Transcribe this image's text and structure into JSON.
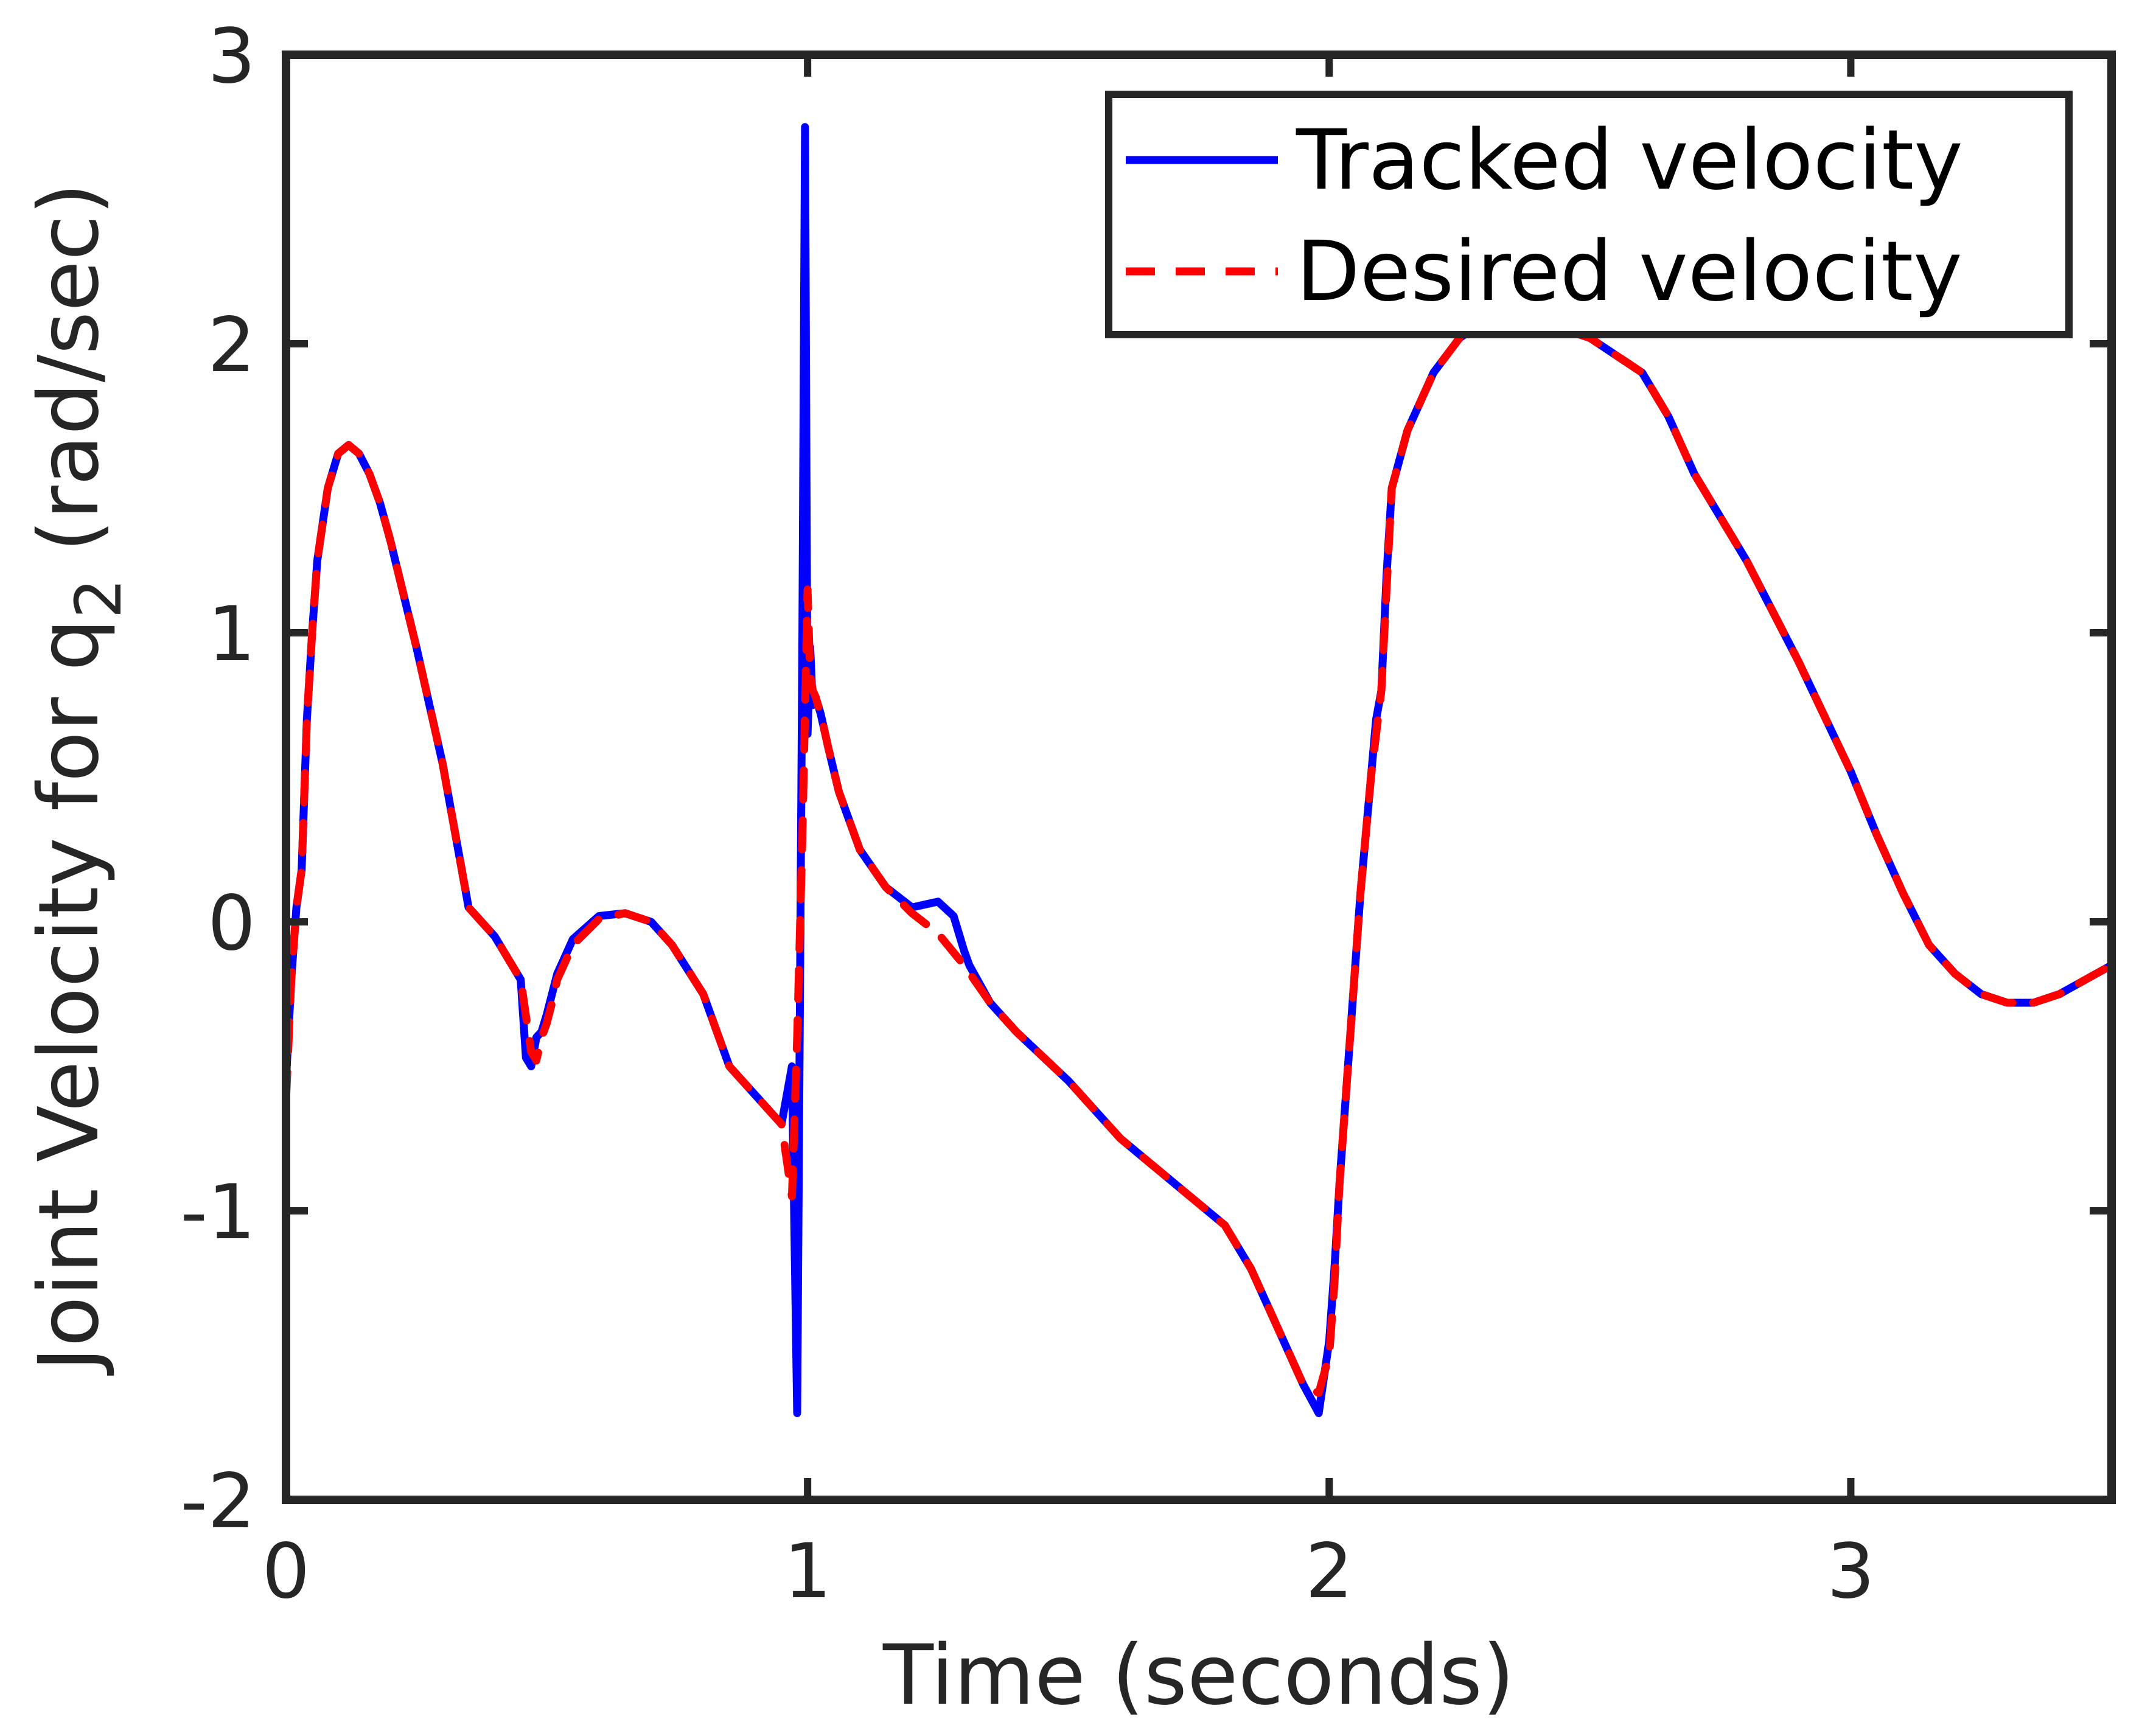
{
  "chart_data": {
    "type": "line",
    "title": "",
    "xlabel": "Time (seconds)",
    "ylabel_main": "Joint Velocity for q",
    "ylabel_sub": "2",
    "ylabel_tail": "  (rad/sec)",
    "xlim": [
      0,
      3.5
    ],
    "ylim": [
      -2,
      3
    ],
    "xticks": [
      0,
      1,
      2,
      3
    ],
    "xtick_labels": [
      "0",
      "1",
      "2",
      "3"
    ],
    "yticks": [
      -2,
      -1,
      0,
      1,
      2,
      3
    ],
    "ytick_labels": [
      "-2",
      "-1",
      "0",
      "1",
      "2",
      "3"
    ],
    "grid": false,
    "legend_position": "top-right",
    "series": [
      {
        "name": "Tracked velocity",
        "color": "#0000ff",
        "style": "solid",
        "x": [
          0,
          0.01,
          0.02,
          0.03,
          0.04,
          0.05,
          0.06,
          0.08,
          0.1,
          0.12,
          0.14,
          0.16,
          0.18,
          0.2,
          0.25,
          0.3,
          0.35,
          0.4,
          0.45,
          0.46,
          0.47,
          0.48,
          0.49,
          0.5,
          0.51,
          0.52,
          0.55,
          0.6,
          0.65,
          0.7,
          0.74,
          0.8,
          0.85,
          0.9,
          0.95,
          0.97,
          0.98,
          0.99,
          0.995,
          1.0,
          1.005,
          1.01,
          1.015,
          1.02,
          1.025,
          1.03,
          1.04,
          1.06,
          1.1,
          1.15,
          1.2,
          1.25,
          1.28,
          1.29,
          1.3,
          1.31,
          1.35,
          1.4,
          1.5,
          1.6,
          1.7,
          1.8,
          1.85,
          1.9,
          1.95,
          1.98,
          2.0,
          2.01,
          2.02,
          2.04,
          2.06,
          2.08,
          2.09,
          2.1,
          2.11,
          2.12,
          2.15,
          2.2,
          2.25,
          2.3,
          2.35,
          2.4,
          2.5,
          2.6,
          2.65,
          2.7,
          2.8,
          2.9,
          3.0,
          3.05,
          3.1,
          3.15,
          3.2,
          3.25,
          3.3,
          3.35,
          3.4,
          3.45,
          3.5
        ],
        "y": [
          -0.55,
          -0.2,
          0.05,
          0.18,
          0.7,
          1.0,
          1.25,
          1.5,
          1.62,
          1.65,
          1.62,
          1.55,
          1.45,
          1.32,
          0.95,
          0.55,
          0.05,
          -0.05,
          -0.2,
          -0.47,
          -0.5,
          -0.4,
          -0.38,
          -0.32,
          -0.25,
          -0.18,
          -0.06,
          0.02,
          0.03,
          0.0,
          -0.08,
          -0.25,
          -0.5,
          -0.6,
          -0.7,
          -0.5,
          -1.7,
          1.0,
          2.75,
          0.65,
          0.95,
          0.75,
          0.78,
          0.75,
          0.72,
          0.68,
          0.6,
          0.45,
          0.25,
          0.12,
          0.05,
          0.07,
          0.02,
          -0.04,
          -0.1,
          -0.15,
          -0.28,
          -0.38,
          -0.55,
          -0.75,
          -0.9,
          -1.05,
          -1.2,
          -1.4,
          -1.6,
          -1.7,
          -1.45,
          -1.2,
          -0.9,
          -0.4,
          0.1,
          0.5,
          0.7,
          0.8,
          1.2,
          1.5,
          1.7,
          1.9,
          2.02,
          2.08,
          2.1,
          2.08,
          2.02,
          1.9,
          1.75,
          1.55,
          1.25,
          0.9,
          0.52,
          0.3,
          0.1,
          -0.08,
          -0.18,
          -0.25,
          -0.28,
          -0.28,
          -0.25,
          -0.2,
          -0.15
        ]
      },
      {
        "name": "Desired velocity",
        "color": "#ff0000",
        "style": "dashed",
        "x": [
          0,
          0.01,
          0.02,
          0.03,
          0.04,
          0.05,
          0.06,
          0.08,
          0.1,
          0.12,
          0.14,
          0.16,
          0.18,
          0.2,
          0.25,
          0.3,
          0.35,
          0.4,
          0.45,
          0.47,
          0.48,
          0.49,
          0.5,
          0.51,
          0.52,
          0.55,
          0.6,
          0.65,
          0.7,
          0.74,
          0.8,
          0.85,
          0.9,
          0.95,
          0.97,
          0.98,
          0.99,
          1.0,
          1.005,
          1.01,
          1.015,
          1.02,
          1.03,
          1.04,
          1.06,
          1.1,
          1.15,
          1.2,
          1.25,
          1.3,
          1.35,
          1.4,
          1.5,
          1.6,
          1.7,
          1.8,
          1.85,
          1.9,
          1.95,
          1.98,
          2.0,
          2.01,
          2.02,
          2.04,
          2.06,
          2.08,
          2.1,
          2.12,
          2.15,
          2.2,
          2.25,
          2.3,
          2.35,
          2.4,
          2.5,
          2.6,
          2.65,
          2.7,
          2.8,
          2.9,
          3.0,
          3.05,
          3.1,
          3.15,
          3.2,
          3.25,
          3.3,
          3.35,
          3.4,
          3.45,
          3.5
        ],
        "y": [
          -0.62,
          -0.2,
          0.05,
          0.18,
          0.7,
          1.0,
          1.25,
          1.5,
          1.62,
          1.65,
          1.62,
          1.55,
          1.45,
          1.32,
          0.95,
          0.55,
          0.05,
          -0.05,
          -0.2,
          -0.45,
          -0.48,
          -0.4,
          -0.35,
          -0.28,
          -0.2,
          -0.08,
          0.01,
          0.03,
          0.0,
          -0.08,
          -0.25,
          -0.5,
          -0.6,
          -0.7,
          -0.95,
          -0.4,
          0.3,
          1.15,
          0.85,
          0.8,
          0.78,
          0.75,
          0.68,
          0.6,
          0.45,
          0.25,
          0.12,
          0.03,
          -0.04,
          -0.15,
          -0.28,
          -0.38,
          -0.55,
          -0.75,
          -0.9,
          -1.05,
          -1.2,
          -1.4,
          -1.6,
          -1.63,
          -1.5,
          -1.25,
          -0.9,
          -0.4,
          0.1,
          0.5,
          0.8,
          1.5,
          1.7,
          1.9,
          2.02,
          2.08,
          2.1,
          2.08,
          2.02,
          1.9,
          1.75,
          1.55,
          1.25,
          0.9,
          0.52,
          0.3,
          0.1,
          -0.08,
          -0.18,
          -0.25,
          -0.28,
          -0.28,
          -0.25,
          -0.2,
          -0.15
        ]
      }
    ]
  }
}
